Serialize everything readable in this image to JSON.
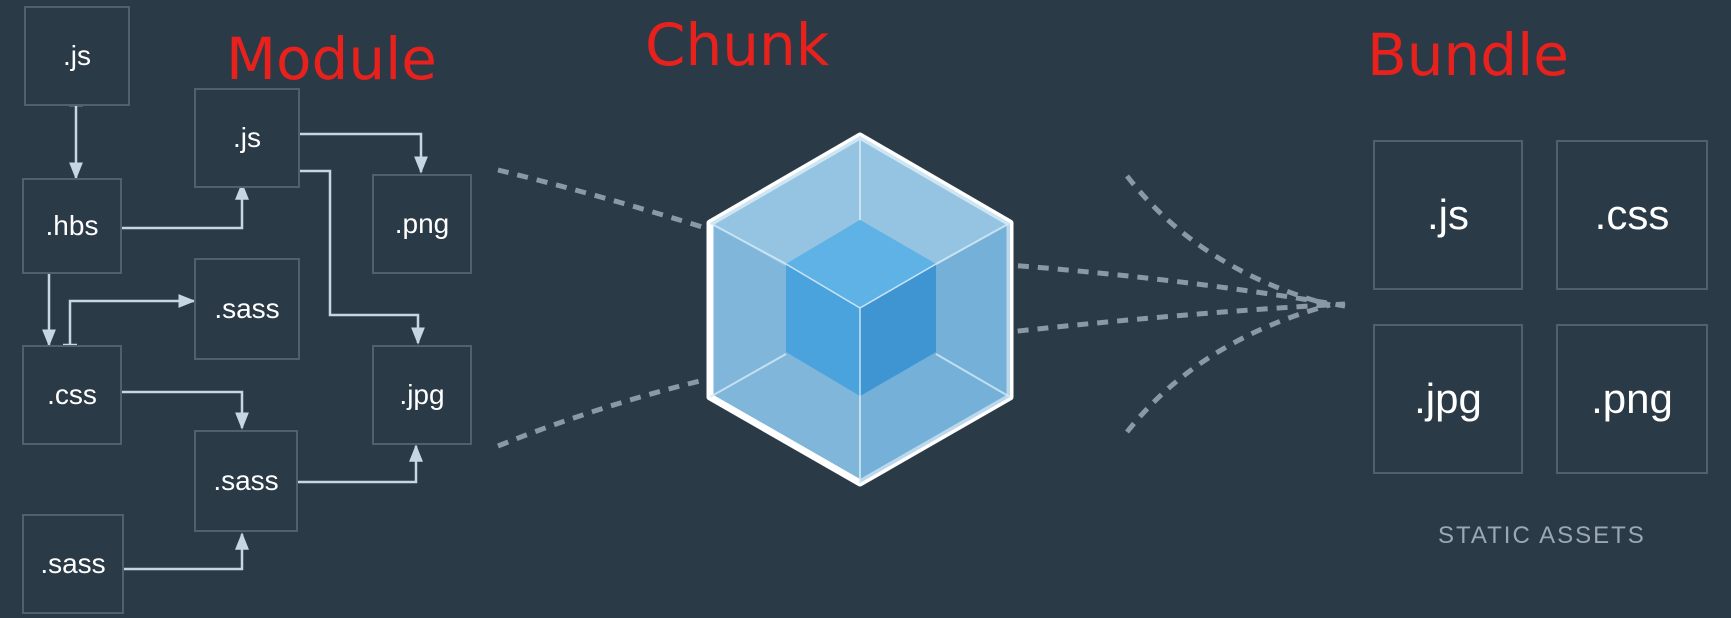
{
  "headings": {
    "module": "Module",
    "chunk": "Chunk",
    "bundle": "Bundle"
  },
  "modules": {
    "js_top": ".js",
    "js_mid": ".js",
    "hbs": ".hbs",
    "png": ".png",
    "sass_a": ".sass",
    "css": ".css",
    "jpg": ".jpg",
    "sass_b": ".sass",
    "sass_c": ".sass"
  },
  "bundle": {
    "assets": [
      ".js",
      ".css",
      ".jpg",
      ".png"
    ],
    "caption": "STATIC ASSETS"
  },
  "colors": {
    "background": "#2b3a47",
    "heading": "#e8211d",
    "box_border": "#52606b",
    "arrow": "#c6d6e2",
    "dotted_line": "#8a99a5",
    "cube_outer": "#8ec1e3",
    "cube_inner": "#4ba3de",
    "cube_edge": "#ffffff"
  }
}
